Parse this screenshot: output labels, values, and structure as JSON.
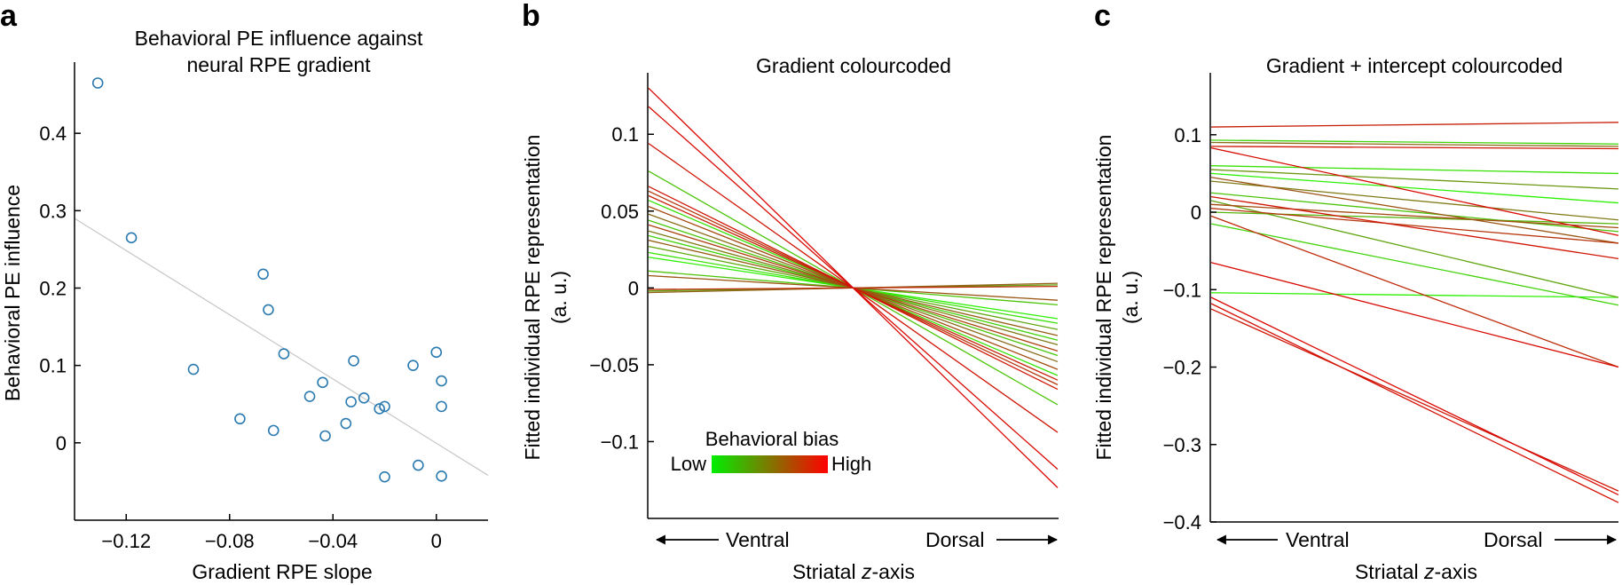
{
  "chart_data": [
    {
      "panel": "a",
      "type": "scatter",
      "title_lines": [
        "Behavioral PE influence against",
        "neural RPE gradient"
      ],
      "xlabel": "Gradient RPE slope",
      "ylabel": "Behavioral PE influence",
      "xlim": [
        -0.14,
        0.02
      ],
      "ylim": [
        -0.1,
        0.5
      ],
      "xticks": [
        -0.12,
        -0.08,
        -0.04,
        0
      ],
      "xtick_labels": [
        "−0.12",
        "−0.08",
        "−0.04",
        "0"
      ],
      "yticks": [
        0,
        0.1,
        0.2,
        0.3,
        0.4
      ],
      "ytick_labels": [
        "0",
        "0.1",
        "0.2",
        "0.3",
        "0.4"
      ],
      "marker_color": "#2a7ab0",
      "points": [
        {
          "x": -0.131,
          "y": 0.465
        },
        {
          "x": -0.118,
          "y": 0.265
        },
        {
          "x": -0.094,
          "y": 0.095
        },
        {
          "x": -0.076,
          "y": 0.031
        },
        {
          "x": -0.067,
          "y": 0.218
        },
        {
          "x": -0.065,
          "y": 0.172
        },
        {
          "x": -0.063,
          "y": 0.016
        },
        {
          "x": -0.059,
          "y": 0.115
        },
        {
          "x": -0.049,
          "y": 0.06
        },
        {
          "x": -0.044,
          "y": 0.078
        },
        {
          "x": -0.043,
          "y": 0.009
        },
        {
          "x": -0.035,
          "y": 0.025
        },
        {
          "x": -0.033,
          "y": 0.053
        },
        {
          "x": -0.032,
          "y": 0.106
        },
        {
          "x": -0.028,
          "y": 0.058
        },
        {
          "x": -0.022,
          "y": 0.044
        },
        {
          "x": -0.02,
          "y": 0.047
        },
        {
          "x": -0.02,
          "y": -0.044
        },
        {
          "x": -0.009,
          "y": 0.1
        },
        {
          "x": -0.007,
          "y": -0.029
        },
        {
          "x": 0.0,
          "y": 0.117
        },
        {
          "x": 0.002,
          "y": 0.047
        },
        {
          "x": 0.002,
          "y": 0.08
        },
        {
          "x": 0.002,
          "y": -0.043
        }
      ],
      "regression_line": {
        "x": [
          -0.14,
          0.02
        ],
        "y": [
          0.29,
          -0.042
        ],
        "color": "#c8c8c8"
      }
    },
    {
      "panel": "b",
      "type": "line",
      "title": "Gradient colourcoded",
      "xlabel": "Striatal z-axis",
      "xlabel_parts": [
        "Striatal ",
        "z",
        "-axis"
      ],
      "ylabel_lines": [
        "Fitted individual RPE representation",
        "(a. u.)"
      ],
      "x_direction_labels": {
        "left": "Ventral",
        "right": "Dorsal"
      },
      "xlim": [
        0,
        1
      ],
      "ylim": [
        -0.15,
        0.14
      ],
      "yticks": [
        -0.1,
        -0.05,
        0,
        0.05,
        0.1
      ],
      "ytick_labels": [
        "−0.1",
        "−0.05",
        "0",
        "0.05",
        "0.1"
      ],
      "legend": {
        "title": "Behavioral bias",
        "low_label": "Low",
        "high_label": "High",
        "gradient_colors": [
          "#00ee00",
          "#ff0000"
        ]
      },
      "color_low": "#22ff00",
      "color_mid": "#8a6b1a",
      "color_high": "#e00000",
      "series": [
        {
          "y0": 0.13,
          "y1": -0.13,
          "bias": 0.97
        },
        {
          "y0": 0.118,
          "y1": -0.118,
          "bias": 0.95
        },
        {
          "y0": 0.094,
          "y1": -0.094,
          "bias": 0.9
        },
        {
          "y0": 0.076,
          "y1": -0.076,
          "bias": 0.2
        },
        {
          "y0": 0.066,
          "y1": -0.066,
          "bias": 0.9
        },
        {
          "y0": 0.063,
          "y1": -0.063,
          "bias": 0.75
        },
        {
          "y0": 0.06,
          "y1": -0.06,
          "bias": 0.85
        },
        {
          "y0": 0.057,
          "y1": -0.057,
          "bias": 0.1
        },
        {
          "y0": 0.053,
          "y1": -0.053,
          "bias": 0.65
        },
        {
          "y0": 0.048,
          "y1": -0.048,
          "bias": 0.5
        },
        {
          "y0": 0.044,
          "y1": -0.044,
          "bias": 0.2
        },
        {
          "y0": 0.041,
          "y1": -0.041,
          "bias": 0.7
        },
        {
          "y0": 0.037,
          "y1": -0.037,
          "bias": 0.45
        },
        {
          "y0": 0.034,
          "y1": -0.034,
          "bias": 0.15
        },
        {
          "y0": 0.031,
          "y1": -0.031,
          "bias": 0.55
        },
        {
          "y0": 0.027,
          "y1": -0.027,
          "bias": 0.3
        },
        {
          "y0": 0.023,
          "y1": -0.023,
          "bias": 0.1
        },
        {
          "y0": 0.02,
          "y1": -0.02,
          "bias": 0.05
        },
        {
          "y0": 0.011,
          "y1": -0.011,
          "bias": 0.2
        },
        {
          "y0": 0.008,
          "y1": -0.008,
          "bias": 0.6
        },
        {
          "y0": -0.002,
          "y1": 0.002,
          "bias": 0.3
        },
        {
          "y0": -0.003,
          "y1": 0.003,
          "bias": 0.55
        },
        {
          "y0": -0.001,
          "y1": 0.001,
          "bias": 0.8
        }
      ]
    },
    {
      "panel": "c",
      "type": "line",
      "title": "Gradient + intercept colourcoded",
      "xlabel": "Striatal z-axis",
      "xlabel_parts": [
        "Striatal ",
        "z",
        "-axis"
      ],
      "ylabel_lines": [
        "Fitted individual RPE representation",
        "(a. u.)"
      ],
      "x_direction_labels": {
        "left": "Ventral",
        "right": "Dorsal"
      },
      "xlim": [
        0,
        1
      ],
      "ylim": [
        -0.4,
        0.18
      ],
      "yticks": [
        -0.4,
        -0.3,
        -0.2,
        -0.1,
        0,
        0.1
      ],
      "ytick_labels": [
        "−0.4",
        "−0.3",
        "−0.2",
        "−0.1",
        "0",
        "0.1"
      ],
      "color_low": "#22ff00",
      "color_mid": "#8a6b1a",
      "color_high": "#e00000",
      "series": [
        {
          "y0": 0.11,
          "y1": 0.116,
          "bias": 0.85
        },
        {
          "y0": 0.093,
          "y1": 0.088,
          "bias": 0.15
        },
        {
          "y0": 0.09,
          "y1": 0.085,
          "bias": 0.5
        },
        {
          "y0": 0.085,
          "y1": 0.082,
          "bias": 0.9
        },
        {
          "y0": 0.083,
          "y1": -0.03,
          "bias": 0.95
        },
        {
          "y0": 0.06,
          "y1": 0.05,
          "bias": 0.1
        },
        {
          "y0": 0.055,
          "y1": 0.03,
          "bias": 0.35
        },
        {
          "y0": 0.05,
          "y1": 0.012,
          "bias": 0.05
        },
        {
          "y0": 0.045,
          "y1": -0.04,
          "bias": 0.6
        },
        {
          "y0": 0.04,
          "y1": -0.01,
          "bias": 0.45
        },
        {
          "y0": 0.025,
          "y1": -0.025,
          "bias": 0.2
        },
        {
          "y0": 0.02,
          "y1": -0.06,
          "bias": 0.9
        },
        {
          "y0": 0.015,
          "y1": -0.11,
          "bias": 0.3
        },
        {
          "y0": 0.01,
          "y1": -0.02,
          "bias": 0.65
        },
        {
          "y0": 0.005,
          "y1": -0.04,
          "bias": 0.75
        },
        {
          "y0": 0.0,
          "y1": -0.015,
          "bias": 0.25
        },
        {
          "y0": -0.005,
          "y1": -0.2,
          "bias": 0.8
        },
        {
          "y0": -0.015,
          "y1": -0.12,
          "bias": 0.15
        },
        {
          "y0": -0.065,
          "y1": -0.2,
          "bias": 0.95
        },
        {
          "y0": -0.104,
          "y1": -0.11,
          "bias": 0.05
        },
        {
          "y0": -0.11,
          "y1": -0.365,
          "bias": 0.97
        },
        {
          "y0": -0.118,
          "y1": -0.375,
          "bias": 0.93
        },
        {
          "y0": -0.125,
          "y1": -0.36,
          "bias": 0.9
        }
      ]
    }
  ]
}
